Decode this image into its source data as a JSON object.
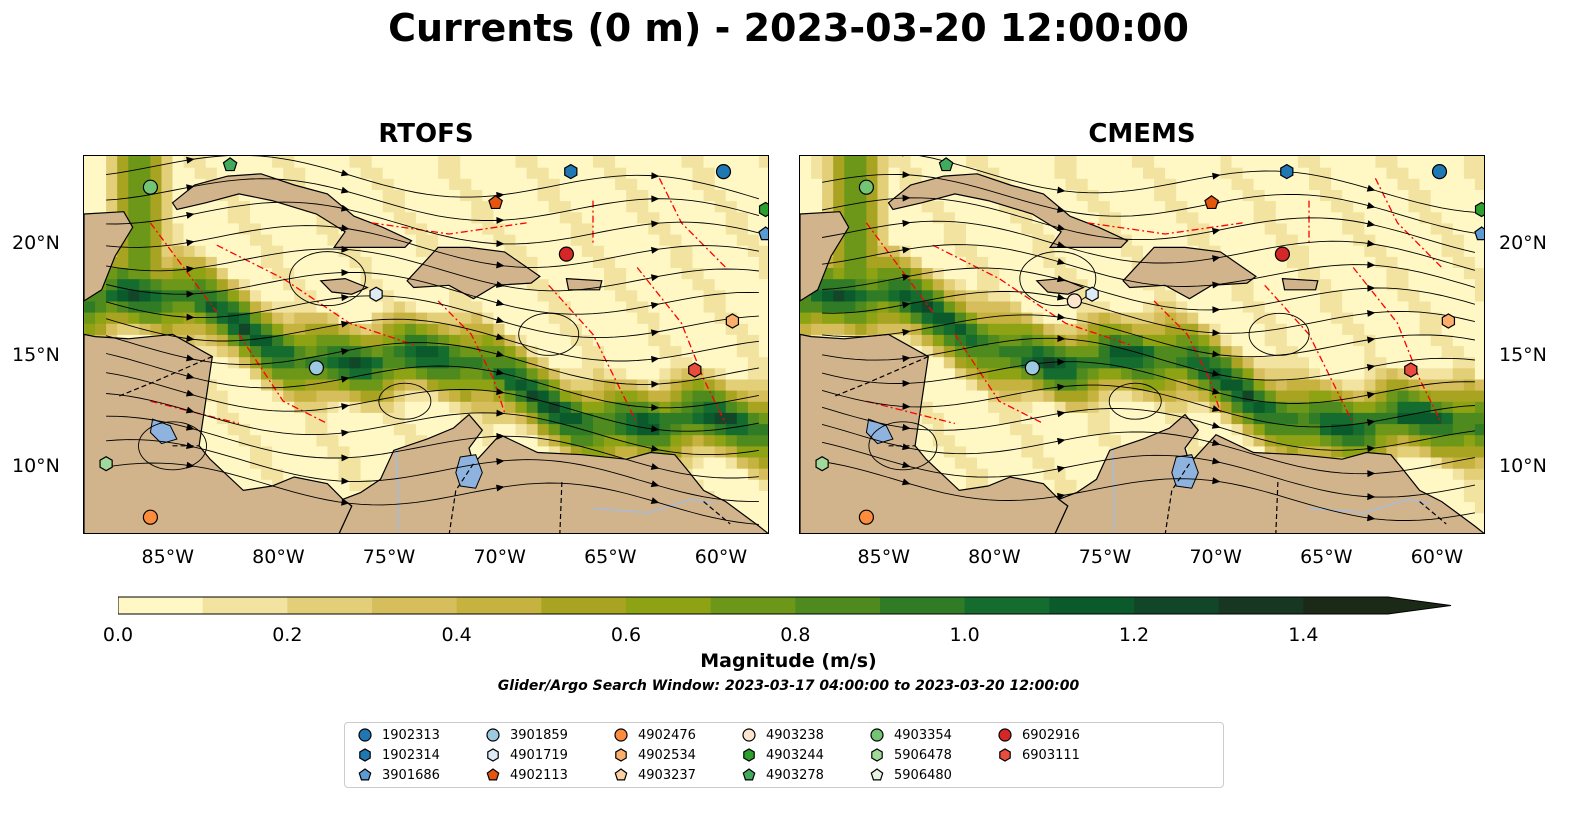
{
  "title": "Currents (0 m) - 2023-03-20 12:00:00",
  "panels": [
    {
      "id": "rtofs",
      "title": "RTOFS"
    },
    {
      "id": "cmems",
      "title": "CMEMS"
    }
  ],
  "map": {
    "lon_range": [
      -89,
      -58
    ],
    "lat_range": [
      7,
      24
    ],
    "lon_ticks": [
      "85°W",
      "80°W",
      "75°W",
      "70°W",
      "65°W",
      "60°W"
    ],
    "lat_ticks": [
      "20°N",
      "15°N",
      "10°N"
    ],
    "colors": {
      "land": "#d2b48c",
      "lake": "#8eb3de",
      "river": "#a8bcd8",
      "eez": "#ff0000",
      "current_low": "#fff8c4",
      "current_high": "#1b2a16"
    }
  },
  "colorbar": {
    "min": 0.0,
    "max": 1.5,
    "step": 0.1,
    "extend": "max",
    "tick_labels": [
      "0.0",
      "0.2",
      "0.4",
      "0.6",
      "0.8",
      "1.0",
      "1.2",
      "1.4"
    ],
    "label": "Magnitude (m/s)",
    "colors": [
      "#fff8c4",
      "#f2e3a0",
      "#e3cf78",
      "#d6be5c",
      "#c6b23e",
      "#a8a422",
      "#8ea313",
      "#6d9718",
      "#4f8a1e",
      "#307b26",
      "#146c2e",
      "#0b5a2b",
      "#124628",
      "#183723",
      "#1b2a16"
    ]
  },
  "subtitle": "Glider/Argo Search Window: 2023-03-17 04:00:00 to 2023-03-20 12:00:00",
  "legend": [
    {
      "id": "1902313",
      "shape": "circle",
      "color": "#1f77b4"
    },
    {
      "id": "1902314",
      "shape": "hexagon",
      "color": "#1f77b4"
    },
    {
      "id": "3901686",
      "shape": "pentagon",
      "color": "#5b9bd5"
    },
    {
      "id": "3901859",
      "shape": "circle",
      "color": "#9ecae1"
    },
    {
      "id": "4901719",
      "shape": "hexagon",
      "color": "#deebf7"
    },
    {
      "id": "4902113",
      "shape": "pentagon",
      "color": "#e6550d"
    },
    {
      "id": "4902476",
      "shape": "circle",
      "color": "#fd8d3c"
    },
    {
      "id": "4902534",
      "shape": "hexagon",
      "color": "#fdae6b"
    },
    {
      "id": "4903237",
      "shape": "pentagon",
      "color": "#fdd0a2"
    },
    {
      "id": "4903238",
      "shape": "circle",
      "color": "#fee6ce"
    },
    {
      "id": "4903244",
      "shape": "hexagon",
      "color": "#2ca02c"
    },
    {
      "id": "4903278",
      "shape": "pentagon",
      "color": "#41ab5d"
    },
    {
      "id": "4903354",
      "shape": "circle",
      "color": "#74c476"
    },
    {
      "id": "5906478",
      "shape": "hexagon",
      "color": "#a1d99b"
    },
    {
      "id": "5906480",
      "shape": "pentagon",
      "color": "#e5f5e0"
    },
    {
      "id": "6902916",
      "shape": "circle",
      "color": "#d62728"
    },
    {
      "id": "6903111",
      "shape": "hexagon",
      "color": "#e74c3c"
    }
  ],
  "floats": [
    {
      "id": "4903354",
      "lon": -86.0,
      "lat": 22.6
    },
    {
      "id": "4903278",
      "lon": -82.4,
      "lat": 23.6
    },
    {
      "id": "1902314",
      "lon": -67.0,
      "lat": 23.3
    },
    {
      "id": "1902313",
      "lon": -60.1,
      "lat": 23.3
    },
    {
      "id": "4903244",
      "lon": -58.2,
      "lat": 21.6
    },
    {
      "id": "3901686",
      "lon": -58.2,
      "lat": 20.5
    },
    {
      "id": "4902113",
      "lon": -70.4,
      "lat": 21.9
    },
    {
      "id": "6902916",
      "lon": -67.2,
      "lat": 19.6
    },
    {
      "id": "4901719",
      "lon": -75.8,
      "lat": 17.8
    },
    {
      "id": "4902534",
      "lon": -59.7,
      "lat": 16.6
    },
    {
      "id": "3901859",
      "lon": -78.5,
      "lat": 14.5
    },
    {
      "id": "6903111",
      "lon": -61.4,
      "lat": 14.4
    },
    {
      "id": "5906478",
      "lon": -88.0,
      "lat": 10.2
    },
    {
      "id": "4902476",
      "lon": -86.0,
      "lat": 7.8
    }
  ],
  "floats_cmems_extra": [
    {
      "id": "4903238",
      "lon": -76.6,
      "lat": 17.5
    }
  ]
}
